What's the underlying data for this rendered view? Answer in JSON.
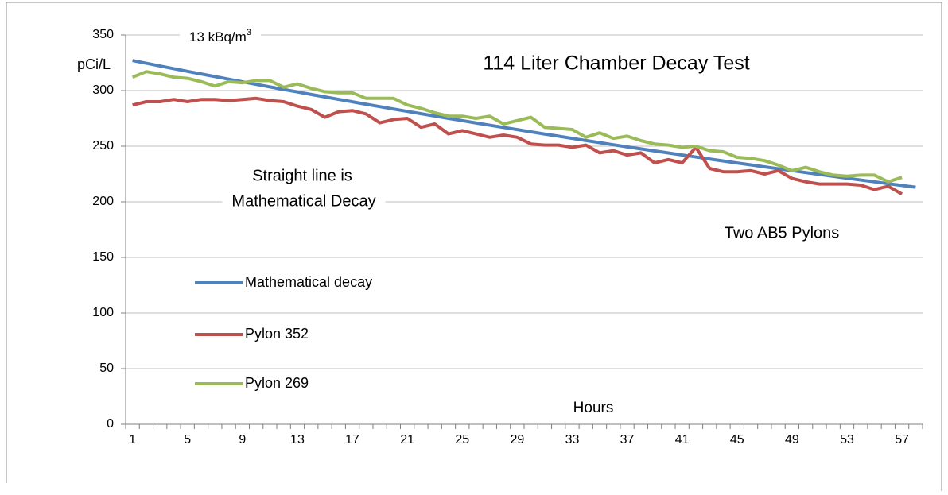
{
  "chart_data": {
    "type": "line",
    "title": "114 Liter Chamber Decay Test",
    "ylabel": "pCi/L",
    "xlabel": "Hours",
    "annotations": [
      {
        "text": "13 kBq/m",
        "superscript": "3"
      },
      {
        "text": "Straight line is"
      },
      {
        "text": "Mathematical Decay"
      },
      {
        "text": "Two AB5 Pylons"
      }
    ],
    "categories": [
      "1",
      null,
      null,
      null,
      "5",
      null,
      null,
      null,
      "9",
      null,
      null,
      null,
      "13",
      null,
      null,
      null,
      "17",
      null,
      null,
      null,
      "21",
      null,
      null,
      null,
      "25",
      null,
      null,
      null,
      "29",
      null,
      null,
      null,
      "33",
      null,
      null,
      null,
      "37",
      null,
      null,
      null,
      "41",
      null,
      null,
      null,
      "45",
      null,
      null,
      null,
      "49",
      null,
      null,
      null,
      "53",
      null,
      null,
      null,
      "57",
      null
    ],
    "series": [
      {
        "name": "Mathematical decay",
        "color": "#4f81bd",
        "values": [
          327,
          324.6,
          322.1,
          319.7,
          317.3,
          314.9,
          312.6,
          310.2,
          307.9,
          305.6,
          303.3,
          301.0,
          298.8,
          296.5,
          294.3,
          292.1,
          289.9,
          287.7,
          285.6,
          283.4,
          281.3,
          279.2,
          277.1,
          275.0,
          273.0,
          270.9,
          268.9,
          266.9,
          264.9,
          262.9,
          260.9,
          259.0,
          257.0,
          255.1,
          253.2,
          251.3,
          249.4,
          247.6,
          245.7,
          243.9,
          242.1,
          240.3,
          238.5,
          236.7,
          234.9,
          233.2,
          231.4,
          229.7,
          228.0,
          226.3,
          224.6,
          222.9,
          221.2,
          219.6,
          218.0,
          216.3,
          214.7,
          213.1
        ]
      },
      {
        "name": "Pylon 352",
        "color": "#c0504d",
        "values": [
          287,
          290,
          290,
          292,
          290,
          292,
          292,
          291,
          292,
          293,
          291,
          290,
          286,
          283,
          276,
          281,
          282,
          279,
          271,
          274,
          275,
          267,
          270,
          261,
          264,
          261,
          258,
          260,
          258,
          252,
          251,
          251,
          249,
          251,
          244,
          246,
          242,
          244,
          235,
          238,
          235,
          249,
          230,
          227,
          227,
          228,
          225,
          228,
          221,
          218,
          216,
          216,
          216,
          215,
          211,
          214,
          207,
          null
        ]
      },
      {
        "name": "Pylon 269",
        "color": "#9bbb59",
        "values": [
          312,
          317,
          315,
          312,
          311,
          308,
          304,
          308,
          307,
          309,
          309,
          303,
          306,
          302,
          299,
          298,
          298,
          293,
          293,
          293,
          287,
          284,
          280,
          277,
          277,
          275,
          277,
          270,
          273,
          276,
          267,
          266,
          265,
          258,
          262,
          257,
          259,
          255,
          252,
          251,
          249,
          250,
          246,
          245,
          240,
          239,
          237,
          233,
          228,
          231,
          227,
          224,
          223,
          224,
          224,
          218,
          222,
          null
        ]
      }
    ],
    "ylim": [
      0,
      350
    ],
    "yticks": [
      0,
      50,
      100,
      150,
      200,
      250,
      300,
      350
    ],
    "grid": true
  }
}
